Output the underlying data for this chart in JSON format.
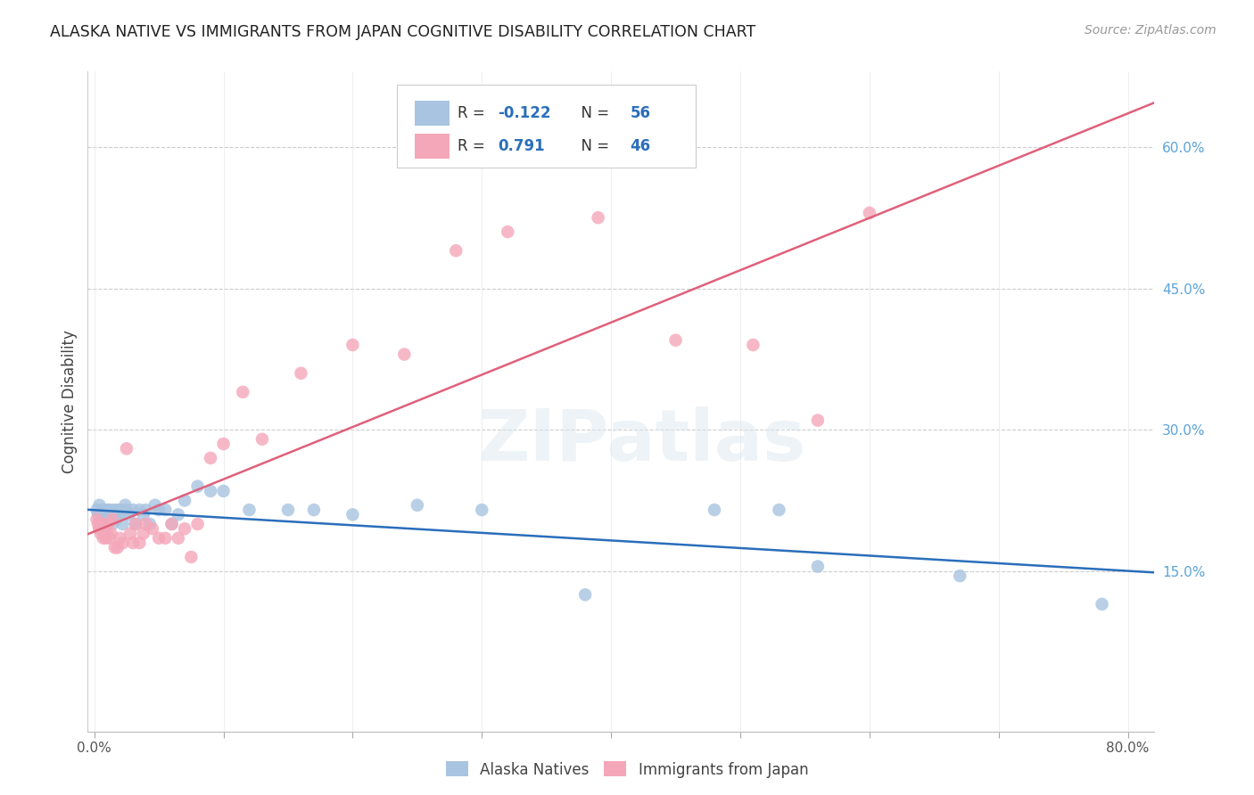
{
  "title": "ALASKA NATIVE VS IMMIGRANTS FROM JAPAN COGNITIVE DISABILITY CORRELATION CHART",
  "source": "Source: ZipAtlas.com",
  "ylabel": "Cognitive Disability",
  "watermark": "ZIPatlas",
  "xlim": [
    -0.005,
    0.82
  ],
  "ylim": [
    -0.02,
    0.68
  ],
  "xticks": [
    0.0,
    0.1,
    0.2,
    0.3,
    0.4,
    0.5,
    0.6,
    0.7,
    0.8
  ],
  "xtick_labels_show": [
    "0.0%",
    "",
    "",
    "",
    "",
    "",
    "",
    "",
    "80.0%"
  ],
  "ytick_labels_right": [
    "15.0%",
    "30.0%",
    "45.0%",
    "60.0%"
  ],
  "ytick_positions_right": [
    0.15,
    0.3,
    0.45,
    0.6
  ],
  "alaska_R": -0.122,
  "alaska_N": 56,
  "japan_R": 0.791,
  "japan_N": 46,
  "alaska_color": "#a8c4e0",
  "japan_color": "#f4a7b9",
  "alaska_line_color": "#2a6ebb",
  "japan_line_color": "#e0607a",
  "background_color": "#ffffff",
  "grid_color": "#cccccc",
  "alaska_x": [
    0.002,
    0.003,
    0.004,
    0.004,
    0.005,
    0.005,
    0.006,
    0.006,
    0.007,
    0.007,
    0.008,
    0.008,
    0.009,
    0.01,
    0.01,
    0.011,
    0.012,
    0.013,
    0.014,
    0.015,
    0.016,
    0.017,
    0.018,
    0.019,
    0.02,
    0.022,
    0.024,
    0.025,
    0.027,
    0.03,
    0.032,
    0.035,
    0.038,
    0.04,
    0.043,
    0.047,
    0.05,
    0.055,
    0.06,
    0.065,
    0.07,
    0.08,
    0.09,
    0.1,
    0.12,
    0.15,
    0.17,
    0.2,
    0.25,
    0.3,
    0.38,
    0.48,
    0.53,
    0.56,
    0.67,
    0.78
  ],
  "alaska_y": [
    0.215,
    0.21,
    0.22,
    0.195,
    0.2,
    0.215,
    0.205,
    0.195,
    0.21,
    0.2,
    0.215,
    0.205,
    0.21,
    0.215,
    0.2,
    0.21,
    0.215,
    0.205,
    0.2,
    0.215,
    0.21,
    0.205,
    0.215,
    0.21,
    0.215,
    0.2,
    0.22,
    0.215,
    0.21,
    0.215,
    0.2,
    0.215,
    0.21,
    0.215,
    0.2,
    0.22,
    0.215,
    0.215,
    0.2,
    0.21,
    0.225,
    0.24,
    0.235,
    0.235,
    0.215,
    0.215,
    0.215,
    0.21,
    0.22,
    0.215,
    0.125,
    0.215,
    0.215,
    0.155,
    0.145,
    0.115
  ],
  "japan_x": [
    0.002,
    0.003,
    0.004,
    0.005,
    0.006,
    0.007,
    0.008,
    0.009,
    0.01,
    0.011,
    0.012,
    0.013,
    0.014,
    0.016,
    0.018,
    0.02,
    0.022,
    0.025,
    0.028,
    0.03,
    0.032,
    0.035,
    0.038,
    0.04,
    0.045,
    0.05,
    0.055,
    0.06,
    0.065,
    0.07,
    0.075,
    0.08,
    0.09,
    0.1,
    0.115,
    0.13,
    0.16,
    0.2,
    0.24,
    0.28,
    0.32,
    0.39,
    0.45,
    0.51,
    0.56,
    0.6
  ],
  "japan_y": [
    0.205,
    0.2,
    0.195,
    0.19,
    0.2,
    0.185,
    0.195,
    0.185,
    0.19,
    0.2,
    0.185,
    0.19,
    0.205,
    0.175,
    0.175,
    0.185,
    0.18,
    0.28,
    0.19,
    0.18,
    0.2,
    0.18,
    0.19,
    0.2,
    0.195,
    0.185,
    0.185,
    0.2,
    0.185,
    0.195,
    0.165,
    0.2,
    0.27,
    0.285,
    0.34,
    0.29,
    0.36,
    0.39,
    0.38,
    0.49,
    0.51,
    0.525,
    0.395,
    0.39,
    0.31,
    0.53
  ]
}
